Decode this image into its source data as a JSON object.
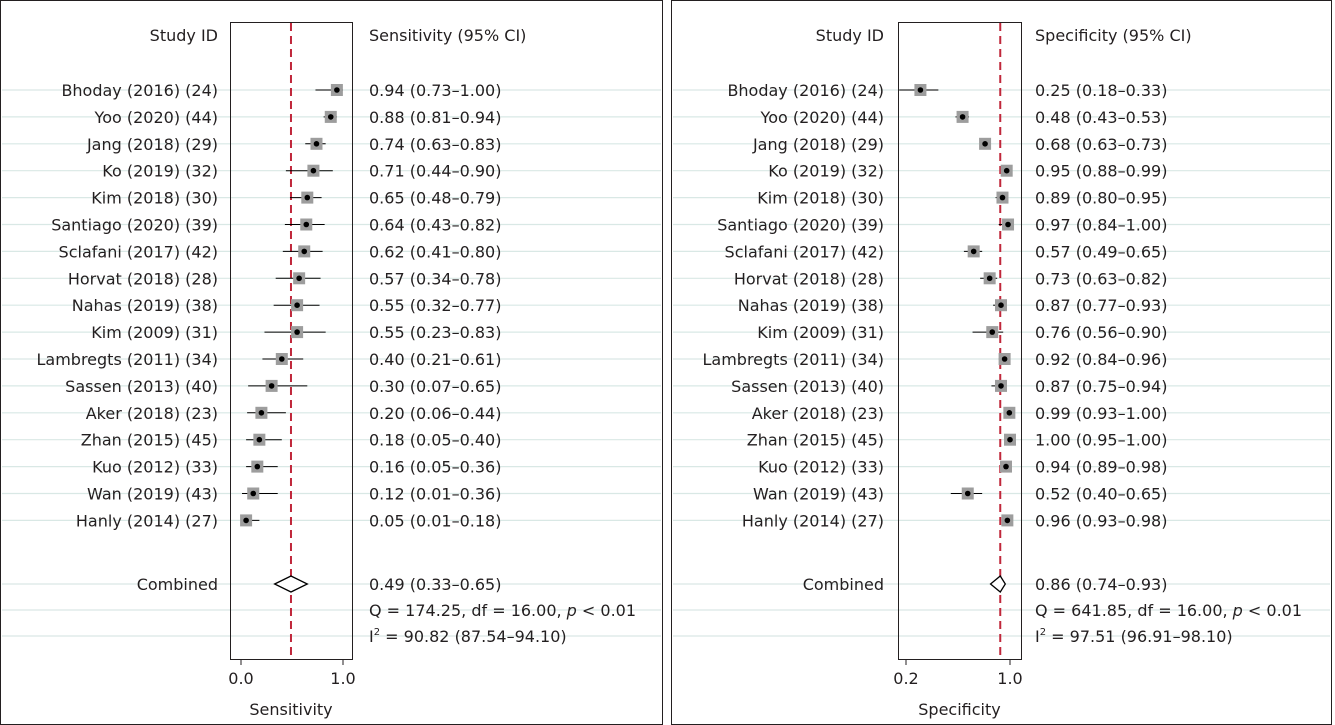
{
  "chart_data": [
    {
      "type": "forest",
      "study_header": "Study ID",
      "estimate_header": "Sensitivity (95% CI)",
      "xlabel": "Sensitivity",
      "xlim": [
        0.0,
        1.0
      ],
      "xscale": "linear",
      "xticks": [
        "0.0",
        "1.0"
      ],
      "xtick_values": [
        0.0,
        1.0
      ],
      "reference_line": 0.49,
      "studies": [
        {
          "label": "Bhoday (2016) (24)",
          "estimate": 0.94,
          "lower": 0.73,
          "upper": 1.0,
          "text": "0.94 (0.73–1.00)"
        },
        {
          "label": "Yoo (2020) (44)",
          "estimate": 0.88,
          "lower": 0.81,
          "upper": 0.94,
          "text": "0.88 (0.81–0.94)"
        },
        {
          "label": "Jang (2018) (29)",
          "estimate": 0.74,
          "lower": 0.63,
          "upper": 0.83,
          "text": "0.74 (0.63–0.83)"
        },
        {
          "label": "Ko (2019) (32)",
          "estimate": 0.71,
          "lower": 0.44,
          "upper": 0.9,
          "text": "0.71 (0.44–0.90)"
        },
        {
          "label": "Kim (2018) (30)",
          "estimate": 0.65,
          "lower": 0.48,
          "upper": 0.79,
          "text": "0.65 (0.48–0.79)"
        },
        {
          "label": "Santiago (2020) (39)",
          "estimate": 0.64,
          "lower": 0.43,
          "upper": 0.82,
          "text": "0.64 (0.43–0.82)"
        },
        {
          "label": "Sclafani (2017) (42)",
          "estimate": 0.62,
          "lower": 0.41,
          "upper": 0.8,
          "text": "0.62 (0.41–0.80)"
        },
        {
          "label": "Horvat (2018) (28)",
          "estimate": 0.57,
          "lower": 0.34,
          "upper": 0.78,
          "text": "0.57 (0.34–0.78)"
        },
        {
          "label": "Nahas (2019) (38)",
          "estimate": 0.55,
          "lower": 0.32,
          "upper": 0.77,
          "text": "0.55 (0.32–0.77)"
        },
        {
          "label": "Kim (2009) (31)",
          "estimate": 0.55,
          "lower": 0.23,
          "upper": 0.83,
          "text": "0.55 (0.23–0.83)"
        },
        {
          "label": "Lambregts (2011) (34)",
          "estimate": 0.4,
          "lower": 0.21,
          "upper": 0.61,
          "text": "0.40 (0.21–0.61)"
        },
        {
          "label": "Sassen (2013) (40)",
          "estimate": 0.3,
          "lower": 0.07,
          "upper": 0.65,
          "text": "0.30 (0.07–0.65)"
        },
        {
          "label": "Aker (2018) (23)",
          "estimate": 0.2,
          "lower": 0.06,
          "upper": 0.44,
          "text": "0.20 (0.06–0.44)"
        },
        {
          "label": "Zhan (2015) (45)",
          "estimate": 0.18,
          "lower": 0.05,
          "upper": 0.4,
          "text": "0.18 (0.05–0.40)"
        },
        {
          "label": "Kuo (2012) (33)",
          "estimate": 0.16,
          "lower": 0.05,
          "upper": 0.36,
          "text": "0.16 (0.05–0.36)"
        },
        {
          "label": "Wan (2019) (43)",
          "estimate": 0.12,
          "lower": 0.01,
          "upper": 0.36,
          "text": "0.12 (0.01–0.36)"
        },
        {
          "label": "Hanly (2014) (27)",
          "estimate": 0.05,
          "lower": 0.01,
          "upper": 0.18,
          "text": "0.05 (0.01–0.18)"
        }
      ],
      "combined": {
        "label": "Combined",
        "estimate": 0.49,
        "lower": 0.33,
        "upper": 0.65,
        "text": "0.49 (0.33–0.65)"
      },
      "heterogeneity": {
        "q_pre": "Q = 174.25, df = 16.00, ",
        "q_p": "p",
        "q_post": " < 0.01",
        "i2_label": "I",
        "i2_sup": "2",
        "i2_value": " = 90.82 (87.54–94.10)"
      }
    },
    {
      "type": "forest",
      "study_header": "Study ID",
      "estimate_header": "Specificity (95% CI)",
      "xlabel": "Specificity",
      "xlim": [
        0.18,
        1.0
      ],
      "xscale": "log",
      "xticks": [
        "0.2",
        "1.0"
      ],
      "xtick_values": [
        0.2,
        1.0
      ],
      "reference_line": 0.86,
      "studies": [
        {
          "label": "Bhoday (2016) (24)",
          "estimate": 0.25,
          "lower": 0.18,
          "upper": 0.33,
          "text": "0.25 (0.18–0.33)"
        },
        {
          "label": "Yoo (2020) (44)",
          "estimate": 0.48,
          "lower": 0.43,
          "upper": 0.53,
          "text": "0.48 (0.43–0.53)"
        },
        {
          "label": "Jang (2018) (29)",
          "estimate": 0.68,
          "lower": 0.63,
          "upper": 0.73,
          "text": "0.68 (0.63–0.73)"
        },
        {
          "label": "Ko (2019) (32)",
          "estimate": 0.95,
          "lower": 0.88,
          "upper": 0.99,
          "text": "0.95 (0.88–0.99)"
        },
        {
          "label": "Kim (2018) (30)",
          "estimate": 0.89,
          "lower": 0.8,
          "upper": 0.95,
          "text": "0.89 (0.80–0.95)"
        },
        {
          "label": "Santiago (2020) (39)",
          "estimate": 0.97,
          "lower": 0.84,
          "upper": 1.0,
          "text": "0.97 (0.84–1.00)"
        },
        {
          "label": "Sclafani (2017) (42)",
          "estimate": 0.57,
          "lower": 0.49,
          "upper": 0.65,
          "text": "0.57 (0.49–0.65)"
        },
        {
          "label": "Horvat (2018) (28)",
          "estimate": 0.73,
          "lower": 0.63,
          "upper": 0.82,
          "text": "0.73 (0.63–0.82)"
        },
        {
          "label": "Nahas (2019) (38)",
          "estimate": 0.87,
          "lower": 0.77,
          "upper": 0.93,
          "text": "0.87 (0.77–0.93)"
        },
        {
          "label": "Kim (2009) (31)",
          "estimate": 0.76,
          "lower": 0.56,
          "upper": 0.9,
          "text": "0.76 (0.56–0.90)"
        },
        {
          "label": "Lambregts (2011) (34)",
          "estimate": 0.92,
          "lower": 0.84,
          "upper": 0.96,
          "text": "0.92 (0.84–0.96)"
        },
        {
          "label": "Sassen (2013) (40)",
          "estimate": 0.87,
          "lower": 0.75,
          "upper": 0.94,
          "text": "0.87 (0.75–0.94)"
        },
        {
          "label": "Aker (2018) (23)",
          "estimate": 0.99,
          "lower": 0.93,
          "upper": 1.0,
          "text": "0.99 (0.93–1.00)"
        },
        {
          "label": "Zhan (2015) (45)",
          "estimate": 1.0,
          "lower": 0.95,
          "upper": 1.0,
          "text": "1.00 (0.95–1.00)"
        },
        {
          "label": "Kuo (2012) (33)",
          "estimate": 0.94,
          "lower": 0.89,
          "upper": 0.98,
          "text": "0.94 (0.89–0.98)"
        },
        {
          "label": "Wan (2019) (43)",
          "estimate": 0.52,
          "lower": 0.4,
          "upper": 0.65,
          "text": "0.52 (0.40–0.65)"
        },
        {
          "label": "Hanly (2014) (27)",
          "estimate": 0.96,
          "lower": 0.93,
          "upper": 0.98,
          "text": "0.96 (0.93–0.98)"
        }
      ],
      "combined": {
        "label": "Combined",
        "estimate": 0.86,
        "lower": 0.74,
        "upper": 0.93,
        "text": "0.86 (0.74–0.93)"
      },
      "heterogeneity": {
        "q_pre": "Q = 641.85, df = 16.00, ",
        "q_p": "p",
        "q_post": " < 0.01",
        "i2_label": "I",
        "i2_sup": "2",
        "i2_value": " = 97.51 (96.91–98.10)"
      }
    }
  ],
  "colors": {
    "reference_line": "#c0273b",
    "box_fill": "#9d9d9d",
    "point": "#000000",
    "ci_line": "#000000",
    "gridline": "#d9e8e5",
    "frame": "#231f20",
    "text": "#231f20"
  }
}
